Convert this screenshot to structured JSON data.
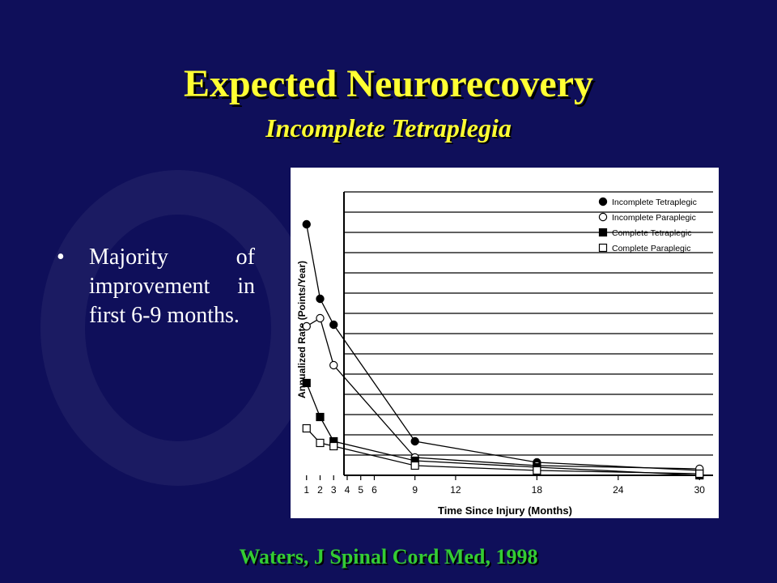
{
  "slide": {
    "title": "Expected Neurorecovery",
    "subtitle": "Incomplete Tetraplegia",
    "bullets": [
      "Majority of improvement in first 6-9 months."
    ],
    "citation": "Waters, J Spinal Cord Med, 1998"
  },
  "colors": {
    "background": "#0f0f5a",
    "title": "#ffff33",
    "citation": "#33cc33",
    "text": "#ffffff"
  },
  "chart_data": {
    "type": "line",
    "xlabel": "Time Since Injury (Months)",
    "ylabel": "Annualized Rate (Points/Year)",
    "x_ticks": [
      1,
      2,
      3,
      4,
      5,
      6,
      9,
      12,
      18,
      24,
      30
    ],
    "xlim": [
      0,
      31
    ],
    "ylim": [
      0,
      17.5
    ],
    "y_tick_labels_shown": false,
    "grid": "horizontal",
    "legend_position": "top-right",
    "series": [
      {
        "name": "Incomplete Tetraplegic",
        "marker": "filled-circle",
        "points": [
          [
            1,
            15.5
          ],
          [
            2,
            10.9
          ],
          [
            3,
            9.3
          ],
          [
            9,
            2.1
          ],
          [
            18,
            0.8
          ],
          [
            30,
            0.3
          ]
        ]
      },
      {
        "name": "Incomplete Paraplegic",
        "marker": "open-circle",
        "points": [
          [
            1,
            9.2
          ],
          [
            2,
            9.7
          ],
          [
            3,
            6.8
          ],
          [
            9,
            1.1
          ],
          [
            18,
            0.6
          ],
          [
            30,
            0.4
          ]
        ]
      },
      {
        "name": "Complete Tetraplegic",
        "marker": "filled-square",
        "points": [
          [
            1,
            5.7
          ],
          [
            2,
            3.6
          ],
          [
            3,
            2.1
          ],
          [
            9,
            0.9
          ],
          [
            18,
            0.5
          ],
          [
            30,
            0.0
          ]
        ]
      },
      {
        "name": "Complete Paraplegic",
        "marker": "open-square",
        "points": [
          [
            1,
            2.9
          ],
          [
            2,
            2.0
          ],
          [
            3,
            1.8
          ],
          [
            9,
            0.6
          ],
          [
            18,
            0.3
          ],
          [
            30,
            0.1
          ]
        ]
      }
    ]
  }
}
